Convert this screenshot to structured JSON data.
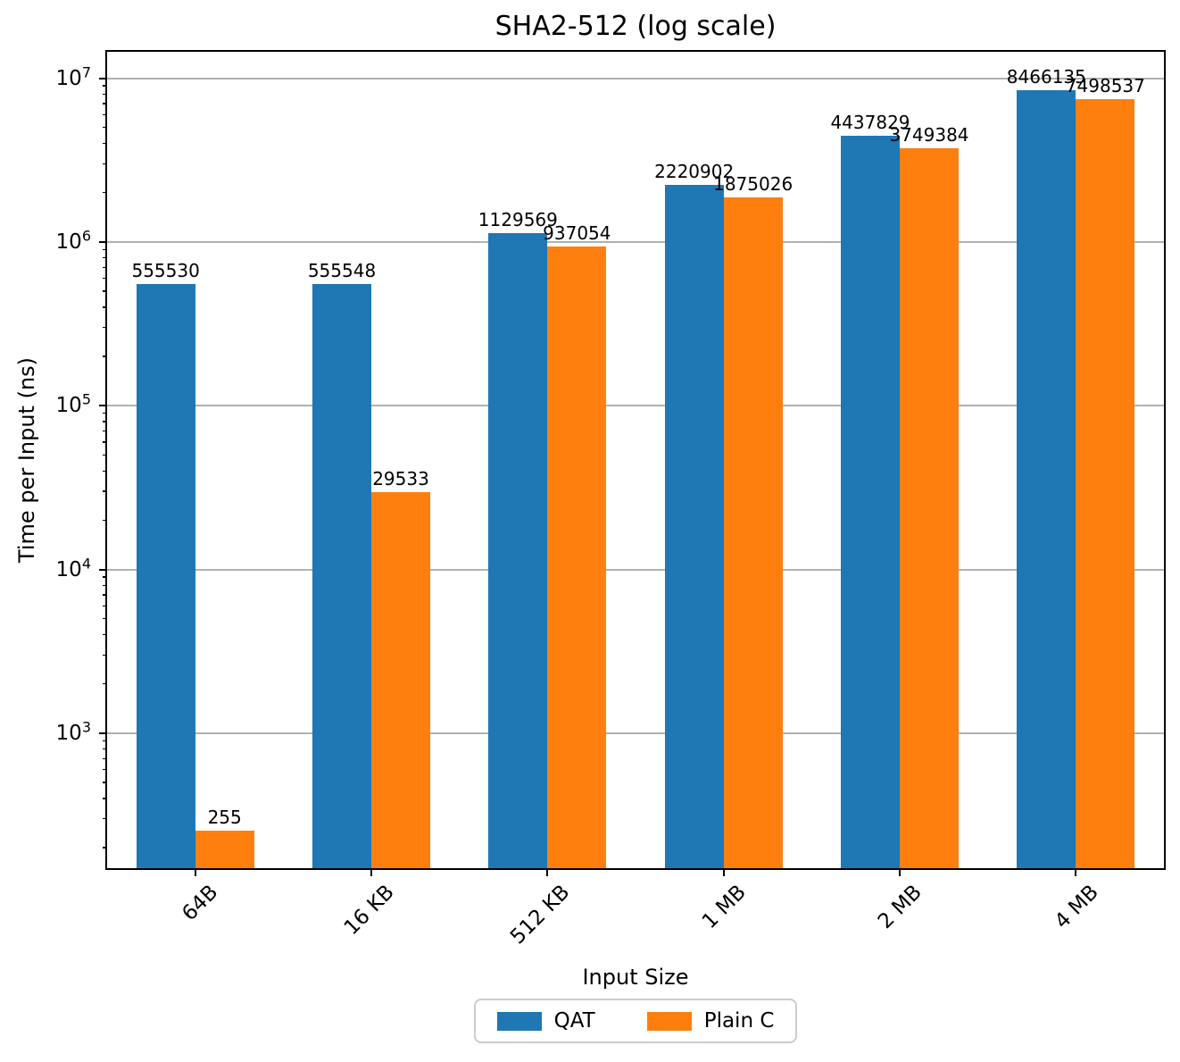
{
  "chart_data": {
    "type": "bar",
    "title": "SHA2-512 (log scale)",
    "xlabel": "Input Size",
    "ylabel": "Time per Input (ns)",
    "categories": [
      "64B",
      "16 KB",
      "512 KB",
      "1 MB",
      "2 MB",
      "4 MB"
    ],
    "series": [
      {
        "name": "QAT",
        "color": "#1f77b4",
        "values": [
          555530,
          555548,
          1129569,
          2220902,
          4437829,
          8466135
        ]
      },
      {
        "name": "Plain C",
        "color": "#ff7f0e",
        "values": [
          255,
          29533,
          937054,
          1875026,
          3749384,
          7498537
        ]
      }
    ],
    "yscale": "log",
    "ylim": [
      150,
      14500000
    ],
    "ytick_exponents": [
      3,
      4,
      5,
      6,
      7
    ],
    "grid": true,
    "bar_value_labels_shown": true,
    "legend_position": "bottom center"
  },
  "colors": {
    "grid": "#b0b0b0",
    "axis": "#000000",
    "legend_border": "#cccccc",
    "text": "#000000",
    "background": "#ffffff"
  }
}
